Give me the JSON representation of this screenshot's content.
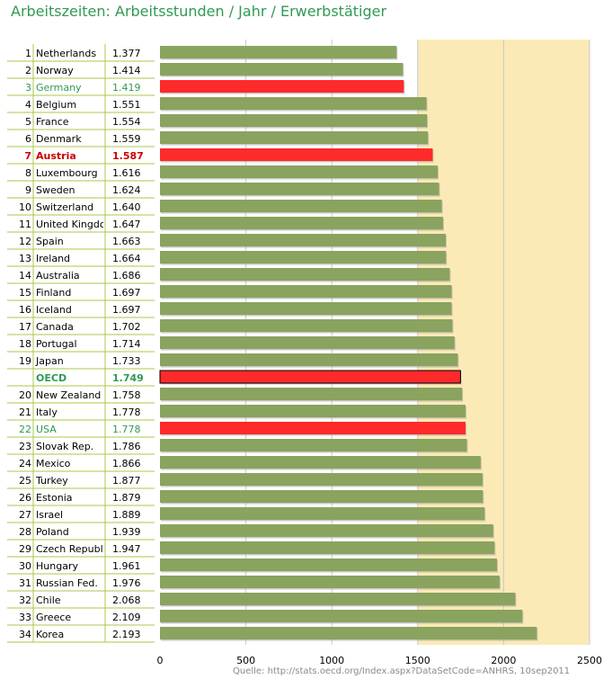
{
  "title": "Arbeitszeiten: Arbeitsstunden / Jahr / Erwerbstätiger",
  "source": "Quelle: http://stats.oecd.org/Index.aspx?DataSetCode=ANHRS, 10sep2011",
  "colors": {
    "bar": "#8aa35f",
    "bar_highlight": "#ff2a2a",
    "plot_band": "#fbeab6",
    "title": "#2f9a52",
    "highlight_text_red": "#cc0000",
    "highlight_text_green": "#2f9a52",
    "table_line": "#a8c94a"
  },
  "chart_data": {
    "type": "bar",
    "orientation": "horizontal",
    "xlim": [
      0,
      2500
    ],
    "xticks": [
      0,
      500,
      1000,
      1500,
      2000,
      2500
    ],
    "grid": "vertical",
    "rows": [
      {
        "rank": "1",
        "country": "Netherlands",
        "label": "1.377",
        "value": 1377,
        "style": "normal"
      },
      {
        "rank": "2",
        "country": "Norway",
        "label": "1.414",
        "value": 1414,
        "style": "normal"
      },
      {
        "rank": "3",
        "country": "Germany",
        "label": "1.419",
        "value": 1419,
        "style": "green"
      },
      {
        "rank": "4",
        "country": "Belgium",
        "label": "1.551",
        "value": 1551,
        "style": "normal"
      },
      {
        "rank": "5",
        "country": "France",
        "label": "1.554",
        "value": 1554,
        "style": "normal"
      },
      {
        "rank": "6",
        "country": "Denmark",
        "label": "1.559",
        "value": 1559,
        "style": "normal"
      },
      {
        "rank": "7",
        "country": "Austria",
        "label": "1.587",
        "value": 1587,
        "style": "red"
      },
      {
        "rank": "8",
        "country": "Luxembourg",
        "label": "1.616",
        "value": 1616,
        "style": "normal"
      },
      {
        "rank": "9",
        "country": "Sweden",
        "label": "1.624",
        "value": 1624,
        "style": "normal"
      },
      {
        "rank": "10",
        "country": "Switzerland",
        "label": "1.640",
        "value": 1640,
        "style": "normal"
      },
      {
        "rank": "11",
        "country": "United Kingdom",
        "label": "1.647",
        "value": 1647,
        "style": "normal"
      },
      {
        "rank": "12",
        "country": "Spain",
        "label": "1.663",
        "value": 1663,
        "style": "normal"
      },
      {
        "rank": "13",
        "country": "Ireland",
        "label": "1.664",
        "value": 1664,
        "style": "normal"
      },
      {
        "rank": "14",
        "country": "Australia",
        "label": "1.686",
        "value": 1686,
        "style": "normal"
      },
      {
        "rank": "15",
        "country": "Finland",
        "label": "1.697",
        "value": 1697,
        "style": "normal"
      },
      {
        "rank": "16",
        "country": "Iceland",
        "label": "1.697",
        "value": 1697,
        "style": "normal"
      },
      {
        "rank": "17",
        "country": "Canada",
        "label": "1.702",
        "value": 1702,
        "style": "normal"
      },
      {
        "rank": "18",
        "country": "Portugal",
        "label": "1.714",
        "value": 1714,
        "style": "normal"
      },
      {
        "rank": "19",
        "country": "Japan",
        "label": "1.733",
        "value": 1733,
        "style": "normal"
      },
      {
        "rank": "",
        "country": "OECD",
        "label": "1.749",
        "value": 1749,
        "style": "oecd"
      },
      {
        "rank": "20",
        "country": "New Zealand",
        "label": "1.758",
        "value": 1758,
        "style": "normal"
      },
      {
        "rank": "21",
        "country": "Italy",
        "label": "1.778",
        "value": 1778,
        "style": "normal"
      },
      {
        "rank": "22",
        "country": "USA",
        "label": "1.778",
        "value": 1778,
        "style": "green"
      },
      {
        "rank": "23",
        "country": "Slovak Rep.",
        "label": "1.786",
        "value": 1786,
        "style": "normal"
      },
      {
        "rank": "24",
        "country": "Mexico",
        "label": "1.866",
        "value": 1866,
        "style": "normal"
      },
      {
        "rank": "25",
        "country": "Turkey",
        "label": "1.877",
        "value": 1877,
        "style": "normal"
      },
      {
        "rank": "26",
        "country": "Estonia",
        "label": "1.879",
        "value": 1879,
        "style": "normal"
      },
      {
        "rank": "27",
        "country": "Israel",
        "label": "1.889",
        "value": 1889,
        "style": "normal"
      },
      {
        "rank": "28",
        "country": "Poland",
        "label": "1.939",
        "value": 1939,
        "style": "normal"
      },
      {
        "rank": "29",
        "country": "Czech Republic",
        "label": "1.947",
        "value": 1947,
        "style": "normal"
      },
      {
        "rank": "30",
        "country": "Hungary",
        "label": "1.961",
        "value": 1961,
        "style": "normal"
      },
      {
        "rank": "31",
        "country": "Russian Fed.",
        "label": "1.976",
        "value": 1976,
        "style": "normal"
      },
      {
        "rank": "32",
        "country": "Chile",
        "label": "2.068",
        "value": 2068,
        "style": "normal"
      },
      {
        "rank": "33",
        "country": "Greece",
        "label": "2.109",
        "value": 2109,
        "style": "normal"
      },
      {
        "rank": "34",
        "country": "Korea",
        "label": "2.193",
        "value": 2193,
        "style": "normal"
      }
    ]
  }
}
